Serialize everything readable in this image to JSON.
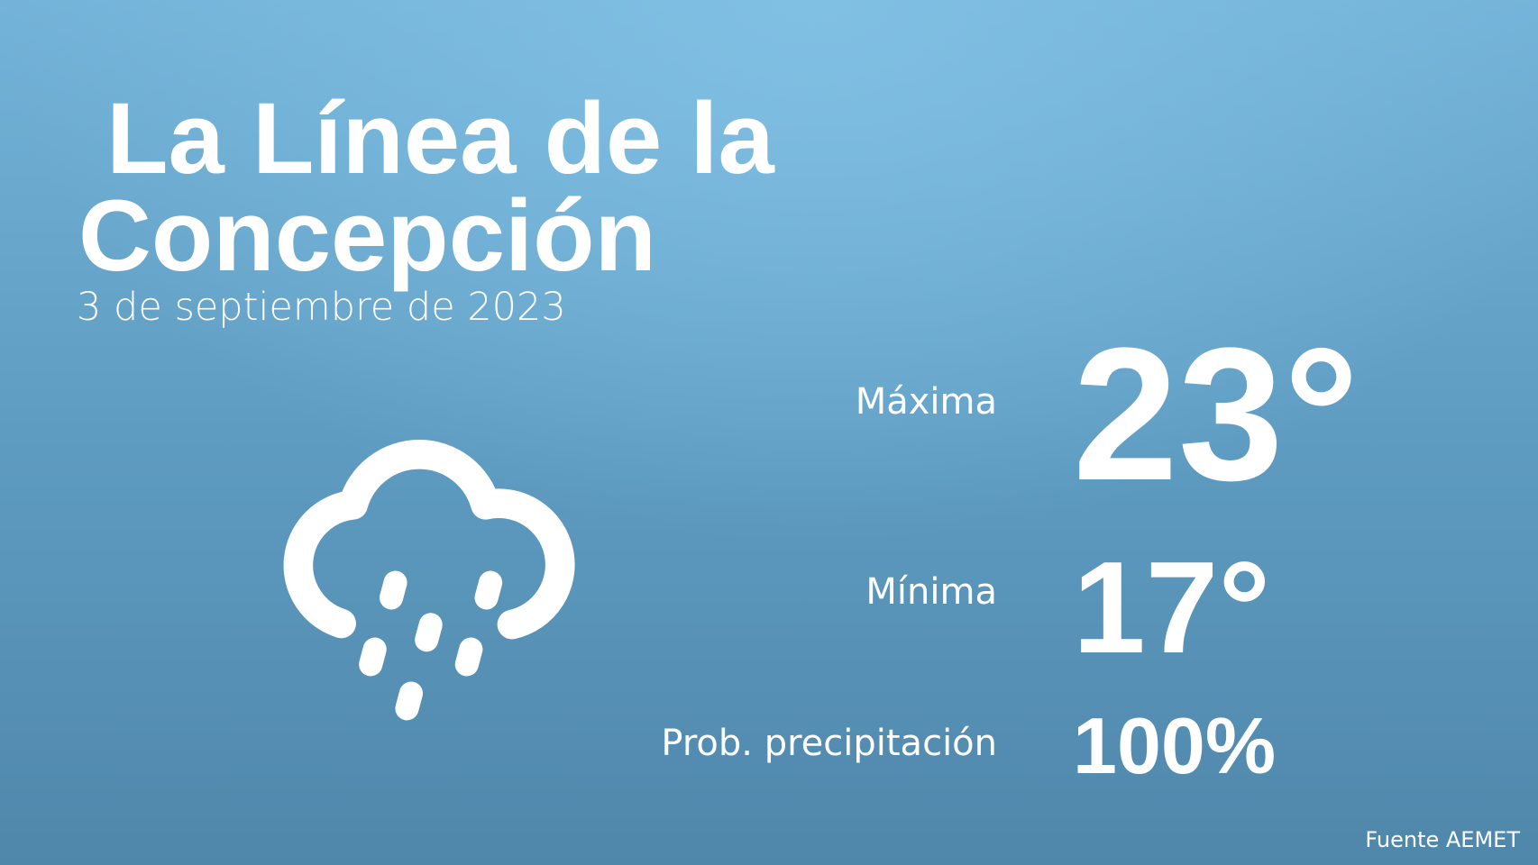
{
  "header": {
    "title_lines": [
      " La Línea de la",
      "Concepción"
    ],
    "date": "3 de septiembre de 2023"
  },
  "forecast": {
    "max": {
      "label": "Máxima",
      "value": "23°"
    },
    "min": {
      "label": "Mínima",
      "value": "17°"
    },
    "precip": {
      "label": "Prob. precipitación",
      "value": "100%"
    }
  },
  "footer": {
    "source": "Fuente AEMET"
  }
}
